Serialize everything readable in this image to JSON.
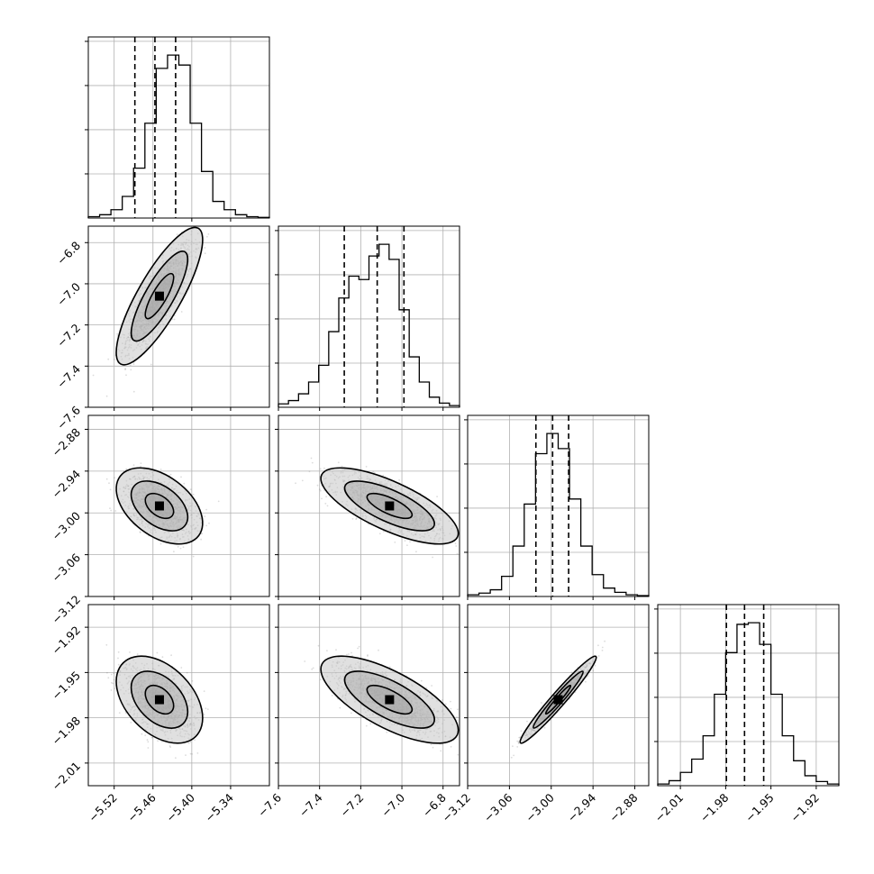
{
  "chart_data": {
    "type": "corner",
    "parameters": [
      {
        "index": 0,
        "range": [
          -5.56,
          -5.28
        ],
        "ticks": [
          -5.52,
          -5.46,
          -5.4,
          -5.34
        ],
        "tick_labels": [
          "−5.52",
          "−5.46",
          "−5.40",
          "−5.34"
        ],
        "quantiles": [
          -5.488,
          -5.457,
          -5.425
        ],
        "hist": [
          0.008,
          0.02,
          0.05,
          0.13,
          0.3,
          0.57,
          0.9,
          0.98,
          0.92,
          0.57,
          0.28,
          0.1,
          0.05,
          0.02,
          0.008,
          0.004
        ]
      },
      {
        "index": 1,
        "range": [
          -7.6,
          -6.72
        ],
        "ticks": [
          -7.6,
          -7.4,
          -7.2,
          -7.0,
          -6.8
        ],
        "tick_labels": [
          "−7.6",
          "−7.4",
          "−7.2",
          "−7.0",
          "−6.8"
        ],
        "quantiles": [
          -7.28,
          -7.12,
          -6.99
        ],
        "hist": [
          0.02,
          0.04,
          0.08,
          0.15,
          0.25,
          0.45,
          0.65,
          0.78,
          0.76,
          0.9,
          0.97,
          0.88,
          0.58,
          0.3,
          0.15,
          0.06,
          0.025,
          0.01
        ]
      },
      {
        "index": 2,
        "range": [
          -3.12,
          -2.86
        ],
        "ticks": [
          -3.12,
          -3.06,
          -3.0,
          -2.94,
          -2.88
        ],
        "tick_labels": [
          "−3.12",
          "−3.06",
          "−3.00",
          "−2.94",
          "−2.88"
        ],
        "quantiles": [
          -3.022,
          -2.998,
          -2.975
        ],
        "hist": [
          0.01,
          0.02,
          0.04,
          0.12,
          0.3,
          0.55,
          0.85,
          0.97,
          0.88,
          0.58,
          0.3,
          0.13,
          0.05,
          0.025,
          0.01,
          0.005
        ]
      },
      {
        "index": 3,
        "range": [
          -2.025,
          -1.905
        ],
        "ticks": [
          -2.01,
          -1.98,
          -1.95,
          -1.92
        ],
        "tick_labels": [
          "−2.01",
          "−1.98",
          "−1.95",
          "−1.92"
        ],
        "quantiles": [
          -1.9795,
          -1.9675,
          -1.9548
        ],
        "hist": [
          0.01,
          0.03,
          0.08,
          0.16,
          0.3,
          0.55,
          0.8,
          0.97,
          0.98,
          0.85,
          0.55,
          0.3,
          0.15,
          0.06,
          0.025,
          0.01
        ]
      }
    ],
    "correlations": [
      [
        1.0,
        0.82,
        -0.45,
        -0.42
      ],
      [
        0.82,
        1.0,
        -0.72,
        -0.7
      ],
      [
        -0.45,
        -0.72,
        1.0,
        0.97
      ],
      [
        -0.42,
        -0.7,
        0.97,
        1.0
      ]
    ],
    "modes": [
      -5.45,
      -7.06,
      -2.99,
      -1.968
    ],
    "stds": [
      0.022,
      0.11,
      0.018,
      0.0095
    ],
    "levels": [
      0.39,
      0.86,
      0.99
    ],
    "grid": true,
    "colors": {
      "points": "#808080",
      "contours": "#000000",
      "hist": "#000000"
    }
  }
}
